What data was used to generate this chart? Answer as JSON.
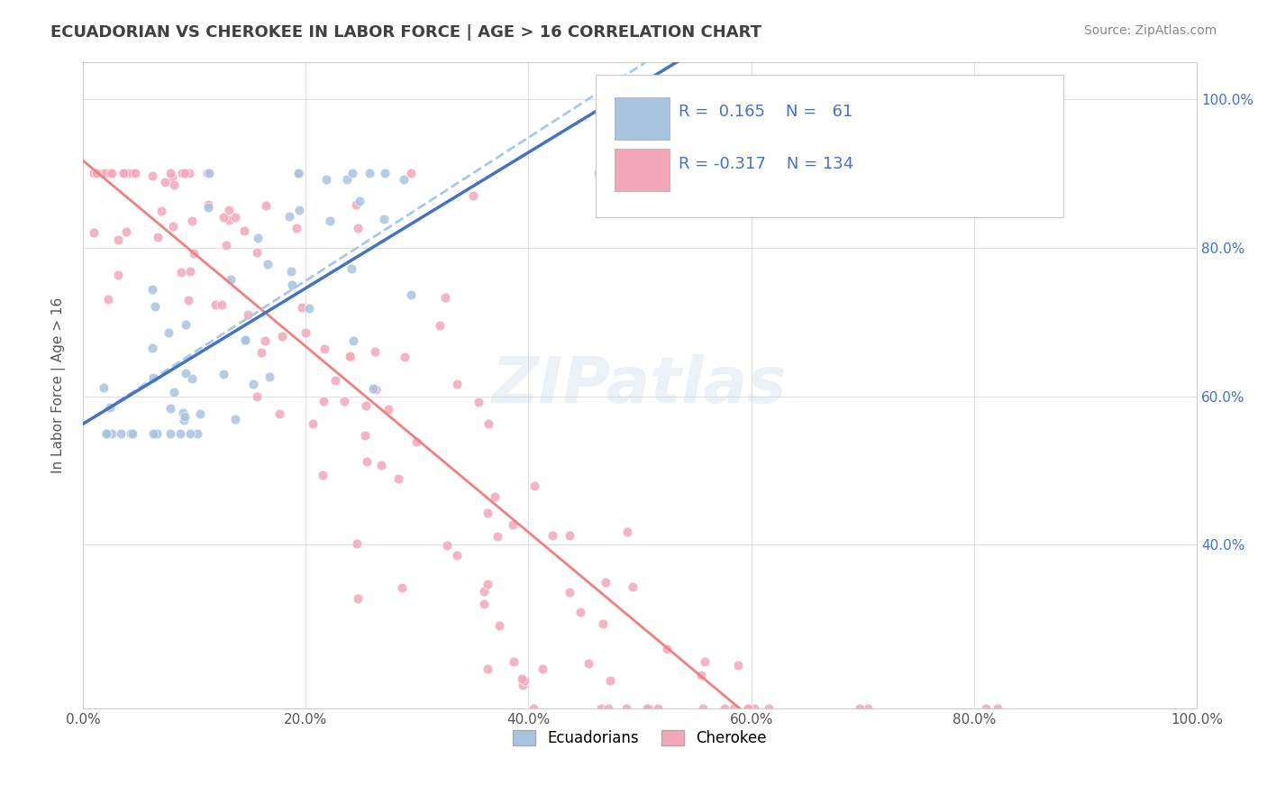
{
  "title": "ECUADORIAN VS CHEROKEE IN LABOR FORCE | AGE > 16 CORRELATION CHART",
  "source": "Source: ZipAtlas.com",
  "ylabel": "In Labor Force | Age > 16",
  "x_min": 0.0,
  "x_max": 1.0,
  "y_min": 0.18,
  "y_max": 1.05,
  "ecua_R": 0.165,
  "ecua_N": 61,
  "cherokee_R": -0.317,
  "cherokee_N": 134,
  "ecua_color": "#a8c4e0",
  "cherokee_color": "#f4a7b9",
  "ecua_line_color": "#4472c4",
  "cherokee_line_color": "#f08080",
  "dashed_line_color": "#a8c8e8",
  "background_color": "#ffffff",
  "grid_color": "#d0d0d0",
  "legend_text_color": "#4472c4",
  "title_color": "#404040",
  "watermark": "ZIPatlas"
}
